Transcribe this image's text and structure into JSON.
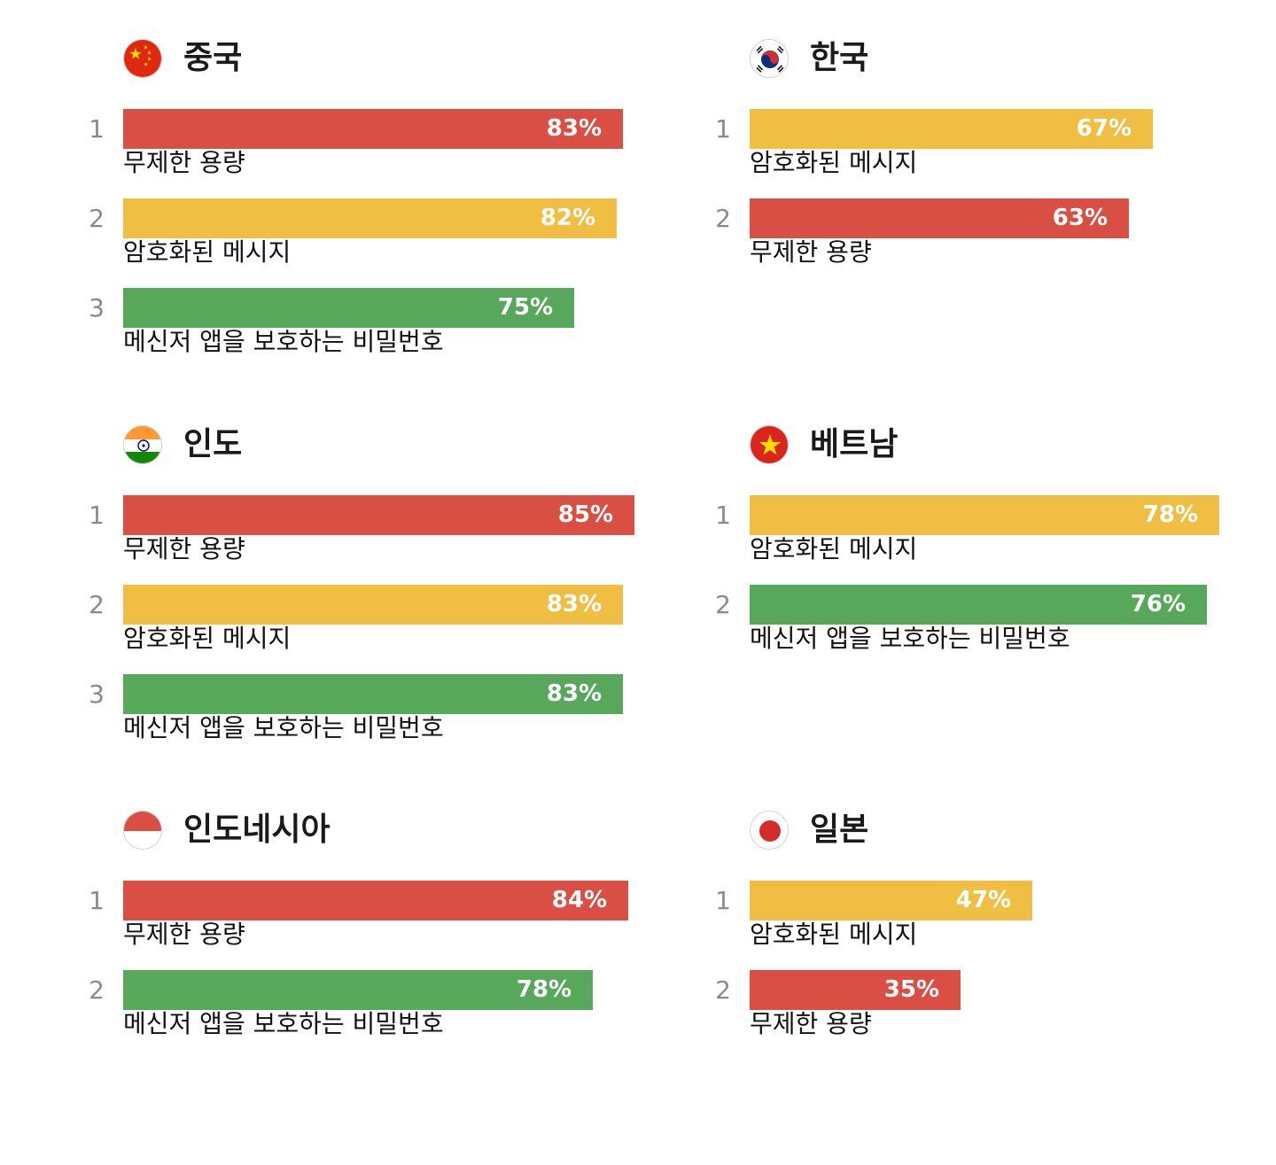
{
  "colors": {
    "unlimited_storage": "#d94f43",
    "encrypted_messages": "#f0be43",
    "password_protection": "#57a85a"
  },
  "chart_data": [
    {
      "type": "bar",
      "title": "중국",
      "flag": "china-flag",
      "unit": "%",
      "categories": [
        "무제한 용량",
        "암호화된 메시지",
        "메신저 앱을 보호하는 비밀번호"
      ],
      "ranks": [
        "1",
        "2",
        "3"
      ],
      "values": [
        83,
        82,
        75
      ],
      "value_labels": [
        "83%",
        "82%",
        "75%"
      ],
      "colors": [
        "#d94f43",
        "#f0be43",
        "#57a85a"
      ],
      "xlim": [
        0,
        100
      ]
    },
    {
      "type": "bar",
      "title": "한국",
      "flag": "korea-flag",
      "unit": "%",
      "categories": [
        "암호화된 메시지",
        "무제한 용량"
      ],
      "ranks": [
        "1",
        "2"
      ],
      "values": [
        67,
        63
      ],
      "value_labels": [
        "67%",
        "63%"
      ],
      "colors": [
        "#f0be43",
        "#d94f43"
      ],
      "xlim": [
        0,
        100
      ]
    },
    {
      "type": "bar",
      "title": "인도",
      "flag": "india-flag",
      "unit": "%",
      "categories": [
        "무제한 용량",
        "암호화된 메시지",
        "메신저 앱을 보호하는 비밀번호"
      ],
      "ranks": [
        "1",
        "2",
        "3"
      ],
      "values": [
        85,
        83,
        83
      ],
      "value_labels": [
        "85%",
        "83%",
        "83%"
      ],
      "colors": [
        "#d94f43",
        "#f0be43",
        "#57a85a"
      ],
      "xlim": [
        0,
        100
      ]
    },
    {
      "type": "bar",
      "title": "베트남",
      "flag": "vietnam-flag",
      "unit": "%",
      "categories": [
        "암호화된 메시지",
        "메신저 앱을 보호하는 비밀번호"
      ],
      "ranks": [
        "1",
        "2"
      ],
      "values": [
        78,
        76
      ],
      "value_labels": [
        "78%",
        "76%"
      ],
      "colors": [
        "#f0be43",
        "#57a85a"
      ],
      "xlim": [
        0,
        100
      ]
    },
    {
      "type": "bar",
      "title": "인도네시아",
      "flag": "indonesia-flag",
      "unit": "%",
      "categories": [
        "무제한 용량",
        "메신저 앱을 보호하는 비밀번호"
      ],
      "ranks": [
        "1",
        "2"
      ],
      "values": [
        84,
        78
      ],
      "value_labels": [
        "84%",
        "78%"
      ],
      "colors": [
        "#d94f43",
        "#57a85a"
      ],
      "xlim": [
        0,
        100
      ]
    },
    {
      "type": "bar",
      "title": "일본",
      "flag": "japan-flag",
      "unit": "%",
      "categories": [
        "암호화된 메시지",
        "무제한 용량"
      ],
      "ranks": [
        "1",
        "2"
      ],
      "values": [
        47,
        35
      ],
      "value_labels": [
        "47%",
        "35%"
      ],
      "colors": [
        "#f0be43",
        "#d94f43"
      ],
      "xlim": [
        0,
        100
      ]
    }
  ]
}
